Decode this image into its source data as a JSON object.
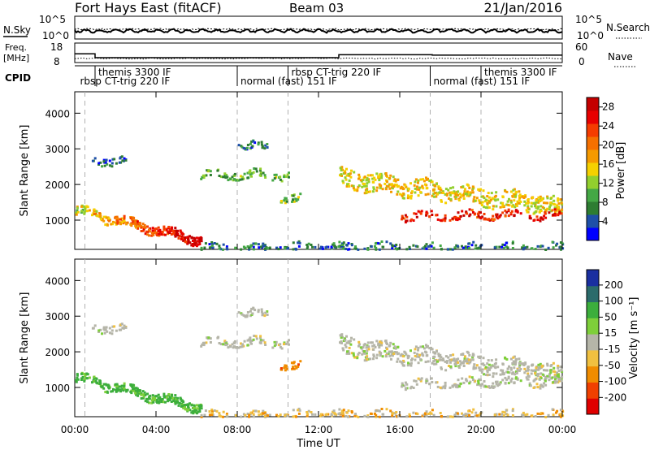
{
  "header": {
    "radar": "Fort Hays East (fitACF)",
    "beam": "Beam 03",
    "date": "21/Jan/2016"
  },
  "top_panels": {
    "nsky": {
      "label": "N.Sky",
      "ticks": [
        "10^5",
        "10^0"
      ]
    },
    "nsearch": {
      "label": "N.Search",
      "ticks": [
        "10^5",
        "10^0"
      ]
    },
    "freq": {
      "label_line1": "Freq.",
      "label_line2": "[MHz]",
      "ticks": [
        "18",
        "8"
      ]
    },
    "nave": {
      "label": "Nave",
      "ticks": [
        "60",
        "0"
      ]
    },
    "freq_trace": [
      [
        0,
        12.5
      ],
      [
        1.0,
        12.5
      ],
      [
        1.0,
        10.5
      ],
      [
        13.0,
        10.5
      ],
      [
        13.0,
        12.0
      ],
      [
        17.6,
        12.0
      ],
      [
        17.6,
        11.8
      ],
      [
        24.0,
        11.8
      ]
    ],
    "cpid": {
      "label": "CPID",
      "segments": [
        {
          "start": 0.1,
          "end": 4.0,
          "label": "rbsp CT-trig 220 IF",
          "row": 2
        },
        {
          "start": 1.0,
          "end": 6.5,
          "label": "themis 3300 IF",
          "row": 1
        },
        {
          "start": 8.0,
          "end": 12.0,
          "label": "normal (fast) 151 IF",
          "row": 2
        },
        {
          "start": 10.5,
          "end": 17.0,
          "label": "rbsp CT-trig 220 IF",
          "row": 1
        },
        {
          "start": 17.5,
          "end": 21.5,
          "label": "normal (fast) 151 IF",
          "row": 2
        },
        {
          "start": 20.0,
          "end": 24.0,
          "label": "themis 3300 IF",
          "row": 1
        }
      ],
      "boundaries": [
        1.0,
        8.0,
        10.5,
        17.5,
        20.0
      ]
    }
  },
  "power_panel": {
    "ylabel": "Slant Range [km]",
    "yticks": [
      "1000",
      "2000",
      "3000",
      "4000"
    ],
    "colorbar_label": "Power [dB]",
    "colorbar_ticks": [
      "4",
      "8",
      "12",
      "16",
      "20",
      "24",
      "28"
    ]
  },
  "velocity_panel": {
    "ylabel": "Slant Range [km]",
    "yticks": [
      "1000",
      "2000",
      "3000",
      "4000"
    ],
    "colorbar_label": "Velocity [m s⁻¹]",
    "colorbar_ticks": [
      "200",
      "100",
      "50",
      "15",
      "-15",
      "-50",
      "-100",
      "-200"
    ]
  },
  "xaxis": {
    "label": "Time UT",
    "ticks": [
      "00:00",
      "04:00",
      "08:00",
      "12:00",
      "16:00",
      "20:00",
      "00:00"
    ]
  },
  "colors": {
    "power_scale": [
      "#0000ff",
      "#1e4fa8",
      "#2e7d32",
      "#44a845",
      "#92cf2e",
      "#f5d000",
      "#f59a00",
      "#f57000",
      "#f53c00",
      "#e80000",
      "#c40000"
    ],
    "velocity_scale": [
      "#1a2fa0",
      "#2b6b6b",
      "#3cae3c",
      "#7ecf3a",
      "#b5b5a8",
      "#f0c040",
      "#f08c00",
      "#f04000",
      "#e00000"
    ],
    "grid": "#b0b0b0"
  },
  "chart_data": [
    {
      "type": "heatmap",
      "title": "Fort Hays East (fitACF) Beam 03 21/Jan/2016 — Power",
      "xlabel": "Time UT",
      "ylabel": "Slant Range [km]",
      "xlim": [
        0,
        24
      ],
      "ylim": [
        180,
        4600
      ],
      "zlabel": "Power [dB]",
      "zlim": [
        0,
        30
      ],
      "features": [
        {
          "description": "strong backscatter band",
          "t_start": 0.0,
          "t_end": 6.2,
          "range_start_km": 1300,
          "range_end_km": 450,
          "width_km": 250,
          "power_dB_start": 14,
          "power_dB_end": 29
        },
        {
          "description": "scattered echoes",
          "t_start": 0.8,
          "t_end": 2.5,
          "range_km": 2700,
          "power_dB": 5
        },
        {
          "description": "patch",
          "t_start": 6.0,
          "t_end": 10.5,
          "range_km": 2300,
          "power_dB": 10
        },
        {
          "description": "patch",
          "t_start": 8.0,
          "t_end": 9.5,
          "range_km": 3100,
          "power_dB": 6
        },
        {
          "description": "patch",
          "t_start": 10.0,
          "t_end": 11.2,
          "range_km": 1600,
          "power_dB": 11
        },
        {
          "description": "broad scatter",
          "t_start": 13.0,
          "t_end": 24.0,
          "range_start_km": 2200,
          "range_end_km": 1400,
          "width_km": 500,
          "power_dB": 15
        },
        {
          "description": "strong lower edge",
          "t_start": 16.0,
          "t_end": 24.0,
          "range_km": 1150,
          "power_dB": 25
        },
        {
          "description": "ground/near-range noise",
          "t_start": 6.0,
          "t_end": 24.0,
          "range_km": 250,
          "power_dB": 6
        }
      ]
    },
    {
      "type": "heatmap",
      "title": "Fort Hays East (fitACF) Beam 03 21/Jan/2016 — Velocity",
      "xlabel": "Time UT",
      "ylabel": "Slant Range [km]",
      "xlim": [
        0,
        24
      ],
      "ylim": [
        180,
        4600
      ],
      "zlabel": "Velocity [m s⁻¹]",
      "zlim": [
        -250,
        250
      ],
      "features": [
        {
          "description": "positive velocity band",
          "t_start": 0.0,
          "t_end": 6.2,
          "range_start_km": 1300,
          "range_end_km": 450,
          "velocity": 40
        },
        {
          "description": "low-velocity scatter",
          "t_start": 6.0,
          "t_end": 10.5,
          "range_km": 2300,
          "velocity": 0
        },
        {
          "description": "negative velocity patch",
          "t_start": 10.0,
          "t_end": 11.2,
          "range_km": 1600,
          "velocity": -60
        },
        {
          "description": "low-velocity broad scatter",
          "t_start": 13.0,
          "t_end": 24.0,
          "range_start_km": 2200,
          "range_end_km": 1400,
          "velocity": 0
        },
        {
          "description": "near-range noise",
          "t_start": 6.0,
          "t_end": 24.0,
          "range_km": 250,
          "velocity": -20
        }
      ]
    }
  ]
}
